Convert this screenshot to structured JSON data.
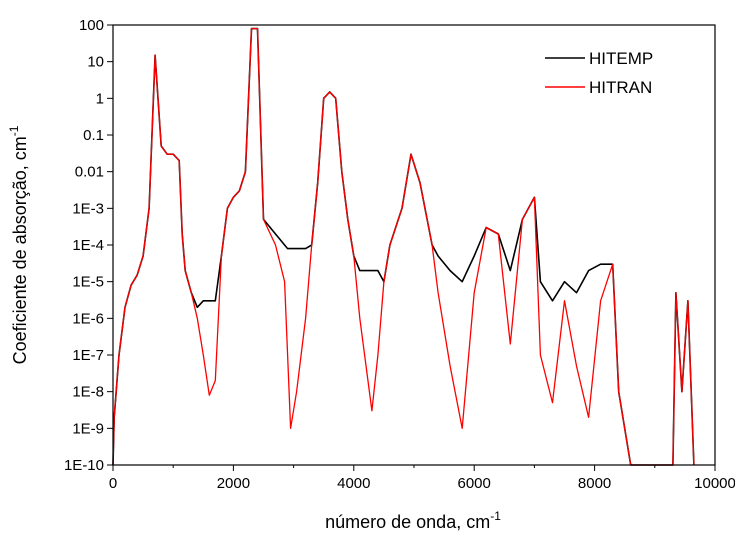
{
  "chart_data": {
    "type": "line",
    "title": "",
    "xlabel": "número de onda, cm",
    "xlabel_sup": "-1",
    "ylabel": "Coeficiente de absorção, cm",
    "ylabel_sup": "-1",
    "xlim": [
      0,
      10000
    ],
    "ylim": [
      1e-10,
      100
    ],
    "yscale": "log",
    "grid": false,
    "legend_position": "top-right",
    "x_ticks": [
      "0",
      "2000",
      "4000",
      "6000",
      "8000",
      "10000"
    ],
    "y_ticks": [
      "1E-10",
      "1E-9",
      "1E-8",
      "1E-7",
      "1E-6",
      "1E-5",
      "1E-4",
      "1E-3",
      "0.01",
      "0.1",
      "1",
      "10",
      "100"
    ],
    "series": [
      {
        "name": "HITEMP",
        "color": "#000000",
        "envelope_points": [
          [
            0,
            1e-10
          ],
          [
            20,
            2e-09
          ],
          [
            100,
            1e-07
          ],
          [
            200,
            2e-06
          ],
          [
            300,
            8e-06
          ],
          [
            400,
            1.5e-05
          ],
          [
            500,
            5e-05
          ],
          [
            600,
            0.001
          ],
          [
            700,
            15
          ],
          [
            800,
            0.05
          ],
          [
            900,
            0.03
          ],
          [
            1000,
            0.03
          ],
          [
            1100,
            0.02
          ],
          [
            1150,
            0.0002
          ],
          [
            1200,
            2e-05
          ],
          [
            1300,
            5e-06
          ],
          [
            1400,
            2e-06
          ],
          [
            1500,
            3e-06
          ],
          [
            1600,
            3e-06
          ],
          [
            1700,
            3e-06
          ],
          [
            1800,
            5e-05
          ],
          [
            1900,
            0.001
          ],
          [
            2000,
            0.002
          ],
          [
            2100,
            0.003
          ],
          [
            2200,
            0.01
          ],
          [
            2300,
            80
          ],
          [
            2400,
            80
          ],
          [
            2500,
            0.0005
          ],
          [
            2700,
            0.0002
          ],
          [
            2850,
            0.0001
          ],
          [
            2900,
            8e-05
          ],
          [
            3000,
            8e-05
          ],
          [
            3200,
            8e-05
          ],
          [
            3300,
            0.0001
          ],
          [
            3400,
            0.005
          ],
          [
            3500,
            1
          ],
          [
            3600,
            1.5
          ],
          [
            3700,
            1
          ],
          [
            3800,
            0.01
          ],
          [
            3900,
            0.0005
          ],
          [
            4000,
            5e-05
          ],
          [
            4100,
            2e-05
          ],
          [
            4300,
            2e-05
          ],
          [
            4400,
            2e-05
          ],
          [
            4500,
            1e-05
          ],
          [
            4600,
            0.0001
          ],
          [
            4800,
            0.001
          ],
          [
            4950,
            0.03
          ],
          [
            5100,
            0.005
          ],
          [
            5300,
            0.0001
          ],
          [
            5400,
            5e-05
          ],
          [
            5600,
            2e-05
          ],
          [
            5800,
            1e-05
          ],
          [
            6000,
            5e-05
          ],
          [
            6200,
            0.0003
          ],
          [
            6400,
            0.0002
          ],
          [
            6600,
            2e-05
          ],
          [
            6800,
            0.0005
          ],
          [
            7000,
            0.002
          ],
          [
            7100,
            1e-05
          ],
          [
            7300,
            3e-06
          ],
          [
            7500,
            1e-05
          ],
          [
            7700,
            5e-06
          ],
          [
            7900,
            2e-05
          ],
          [
            8100,
            3e-05
          ],
          [
            8300,
            3e-05
          ],
          [
            8400,
            1e-08
          ],
          [
            8600,
            1e-10
          ],
          [
            9300,
            1e-10
          ],
          [
            9350,
            5e-06
          ],
          [
            9450,
            1e-08
          ],
          [
            9550,
            3e-06
          ],
          [
            9650,
            1e-10
          ]
        ]
      },
      {
        "name": "HITRAN",
        "color": "#ff0000",
        "envelope_points": [
          [
            0,
            1e-10
          ],
          [
            20,
            2e-09
          ],
          [
            100,
            1e-07
          ],
          [
            200,
            2e-06
          ],
          [
            300,
            8e-06
          ],
          [
            400,
            1.5e-05
          ],
          [
            500,
            5e-05
          ],
          [
            600,
            0.001
          ],
          [
            700,
            15
          ],
          [
            800,
            0.05
          ],
          [
            900,
            0.03
          ],
          [
            1000,
            0.03
          ],
          [
            1100,
            0.02
          ],
          [
            1150,
            0.0002
          ],
          [
            1200,
            2e-05
          ],
          [
            1300,
            5e-06
          ],
          [
            1400,
            1e-06
          ],
          [
            1500,
            1e-07
          ],
          [
            1600,
            8e-09
          ],
          [
            1700,
            2e-08
          ],
          [
            1800,
            5e-05
          ],
          [
            1900,
            0.001
          ],
          [
            2000,
            0.002
          ],
          [
            2100,
            0.003
          ],
          [
            2200,
            0.01
          ],
          [
            2300,
            80
          ],
          [
            2400,
            80
          ],
          [
            2500,
            0.0005
          ],
          [
            2700,
            0.0001
          ],
          [
            2850,
            1e-05
          ],
          [
            2950,
            1e-09
          ],
          [
            3050,
            1e-08
          ],
          [
            3200,
            1e-06
          ],
          [
            3300,
            0.0001
          ],
          [
            3400,
            0.005
          ],
          [
            3500,
            1
          ],
          [
            3600,
            1.5
          ],
          [
            3700,
            1
          ],
          [
            3800,
            0.01
          ],
          [
            3900,
            0.0005
          ],
          [
            4000,
            5e-05
          ],
          [
            4100,
            1e-06
          ],
          [
            4300,
            3e-09
          ],
          [
            4400,
            1e-07
          ],
          [
            4500,
            1e-05
          ],
          [
            4600,
            0.0001
          ],
          [
            4800,
            0.001
          ],
          [
            4950,
            0.03
          ],
          [
            5100,
            0.005
          ],
          [
            5300,
            0.0001
          ],
          [
            5400,
            5e-06
          ],
          [
            5600,
            5e-08
          ],
          [
            5800,
            1e-09
          ],
          [
            6000,
            5e-06
          ],
          [
            6200,
            0.0003
          ],
          [
            6400,
            0.0002
          ],
          [
            6600,
            2e-07
          ],
          [
            6800,
            0.0005
          ],
          [
            7000,
            0.002
          ],
          [
            7100,
            1e-07
          ],
          [
            7300,
            5e-09
          ],
          [
            7500,
            3e-06
          ],
          [
            7700,
            5e-08
          ],
          [
            7900,
            2e-09
          ],
          [
            8100,
            3e-06
          ],
          [
            8300,
            3e-05
          ],
          [
            8400,
            1e-08
          ],
          [
            8600,
            1e-10
          ],
          [
            9300,
            1e-10
          ],
          [
            9350,
            5e-06
          ],
          [
            9450,
            1e-08
          ],
          [
            9550,
            3e-06
          ],
          [
            9650,
            1e-10
          ]
        ]
      }
    ]
  }
}
